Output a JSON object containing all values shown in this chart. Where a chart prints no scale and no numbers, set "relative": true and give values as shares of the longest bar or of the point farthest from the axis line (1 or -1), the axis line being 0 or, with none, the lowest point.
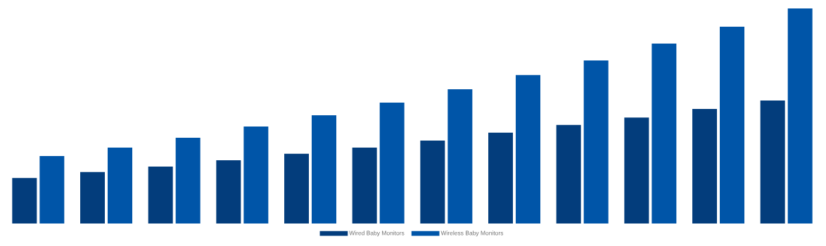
{
  "chart_data": {
    "type": "bar",
    "relative": true,
    "legend": "bottom",
    "categories": [
      null,
      null,
      null,
      null,
      null,
      null,
      null,
      null,
      null,
      null,
      null,
      null
    ],
    "series": [
      {
        "name": "Wired Baby Monitors",
        "color": "#033d7c",
        "values": [
          0.212,
          0.239,
          0.265,
          0.294,
          0.324,
          0.353,
          0.386,
          0.422,
          0.458,
          0.493,
          0.533,
          0.572
        ]
      },
      {
        "name": "Wireless Baby Monitors",
        "color": "#0055a8",
        "values": [
          0.314,
          0.353,
          0.399,
          0.451,
          0.503,
          0.562,
          0.624,
          0.69,
          0.758,
          0.837,
          0.915,
          1
        ]
      }
    ]
  }
}
